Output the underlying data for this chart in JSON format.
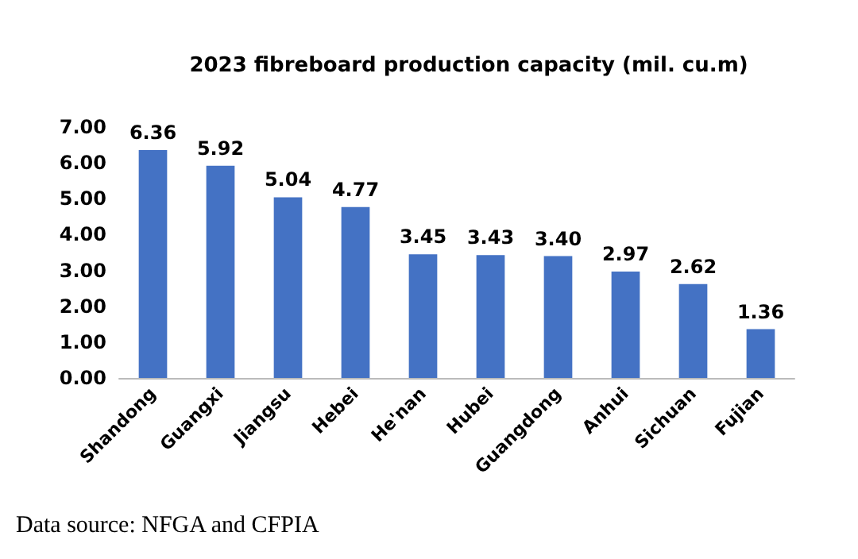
{
  "chart_data": {
    "type": "bar",
    "title": "2023 fibreboard production capacity (mil. cu.m)",
    "categories": [
      "Shandong",
      "Guangxi",
      "Jiangsu",
      "Hebei",
      "He'nan",
      "Hubei",
      "Guangdong",
      "Anhui",
      "Sichuan",
      "Fujian"
    ],
    "values": [
      6.36,
      5.92,
      5.04,
      4.77,
      3.45,
      3.43,
      3.4,
      2.97,
      2.62,
      1.36
    ],
    "value_labels": [
      "6.36",
      "5.92",
      "5.04",
      "4.77",
      "3.45",
      "3.43",
      "3.40",
      "2.97",
      "2.62",
      "1.36"
    ],
    "color": "#4472c4",
    "ylim": [
      0,
      7
    ],
    "yticks": [
      {
        "value": 0,
        "label": "0.00"
      },
      {
        "value": 1,
        "label": "1.00"
      },
      {
        "value": 2,
        "label": "2.00"
      },
      {
        "value": 3,
        "label": "3.00"
      },
      {
        "value": 4,
        "label": "4.00"
      },
      {
        "value": 5,
        "label": "5.00"
      },
      {
        "value": 6,
        "label": "6.00"
      },
      {
        "value": 7,
        "label": "7.00"
      }
    ],
    "grid": false,
    "annotations": [
      "Data source: NFGA and CFPIA"
    ]
  }
}
